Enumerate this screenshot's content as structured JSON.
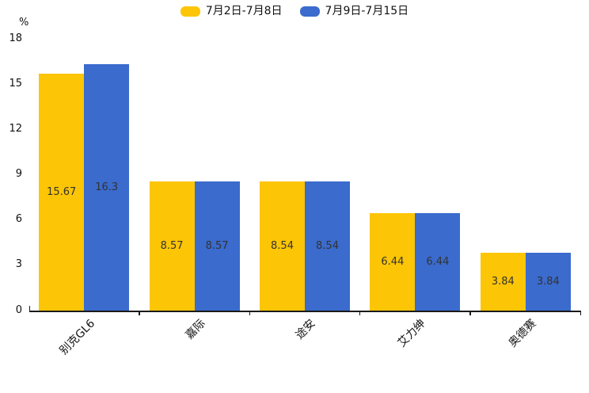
{
  "chart_data": {
    "type": "bar",
    "title": "",
    "xlabel": "",
    "ylabel": "%",
    "ylim": [
      0,
      18
    ],
    "yticks": [
      0,
      3,
      6,
      9,
      12,
      15,
      18
    ],
    "grid": false,
    "legend_position": "top-center",
    "categories": [
      "别克GL6",
      "嘉际",
      "途安",
      "艾力绅",
      "奥德赛"
    ],
    "series": [
      {
        "name": "7月2日-7月8日",
        "color": "#FCC505",
        "values": [
          15.67,
          8.57,
          8.54,
          6.44,
          3.84
        ]
      },
      {
        "name": "7月9日-7月15日",
        "color": "#3A6BCD",
        "values": [
          16.3,
          8.57,
          8.54,
          6.44,
          3.84
        ]
      }
    ],
    "bar_value_labels_shown": true,
    "axis_color": "#1a1a1a",
    "value_label_color": "#333333"
  }
}
